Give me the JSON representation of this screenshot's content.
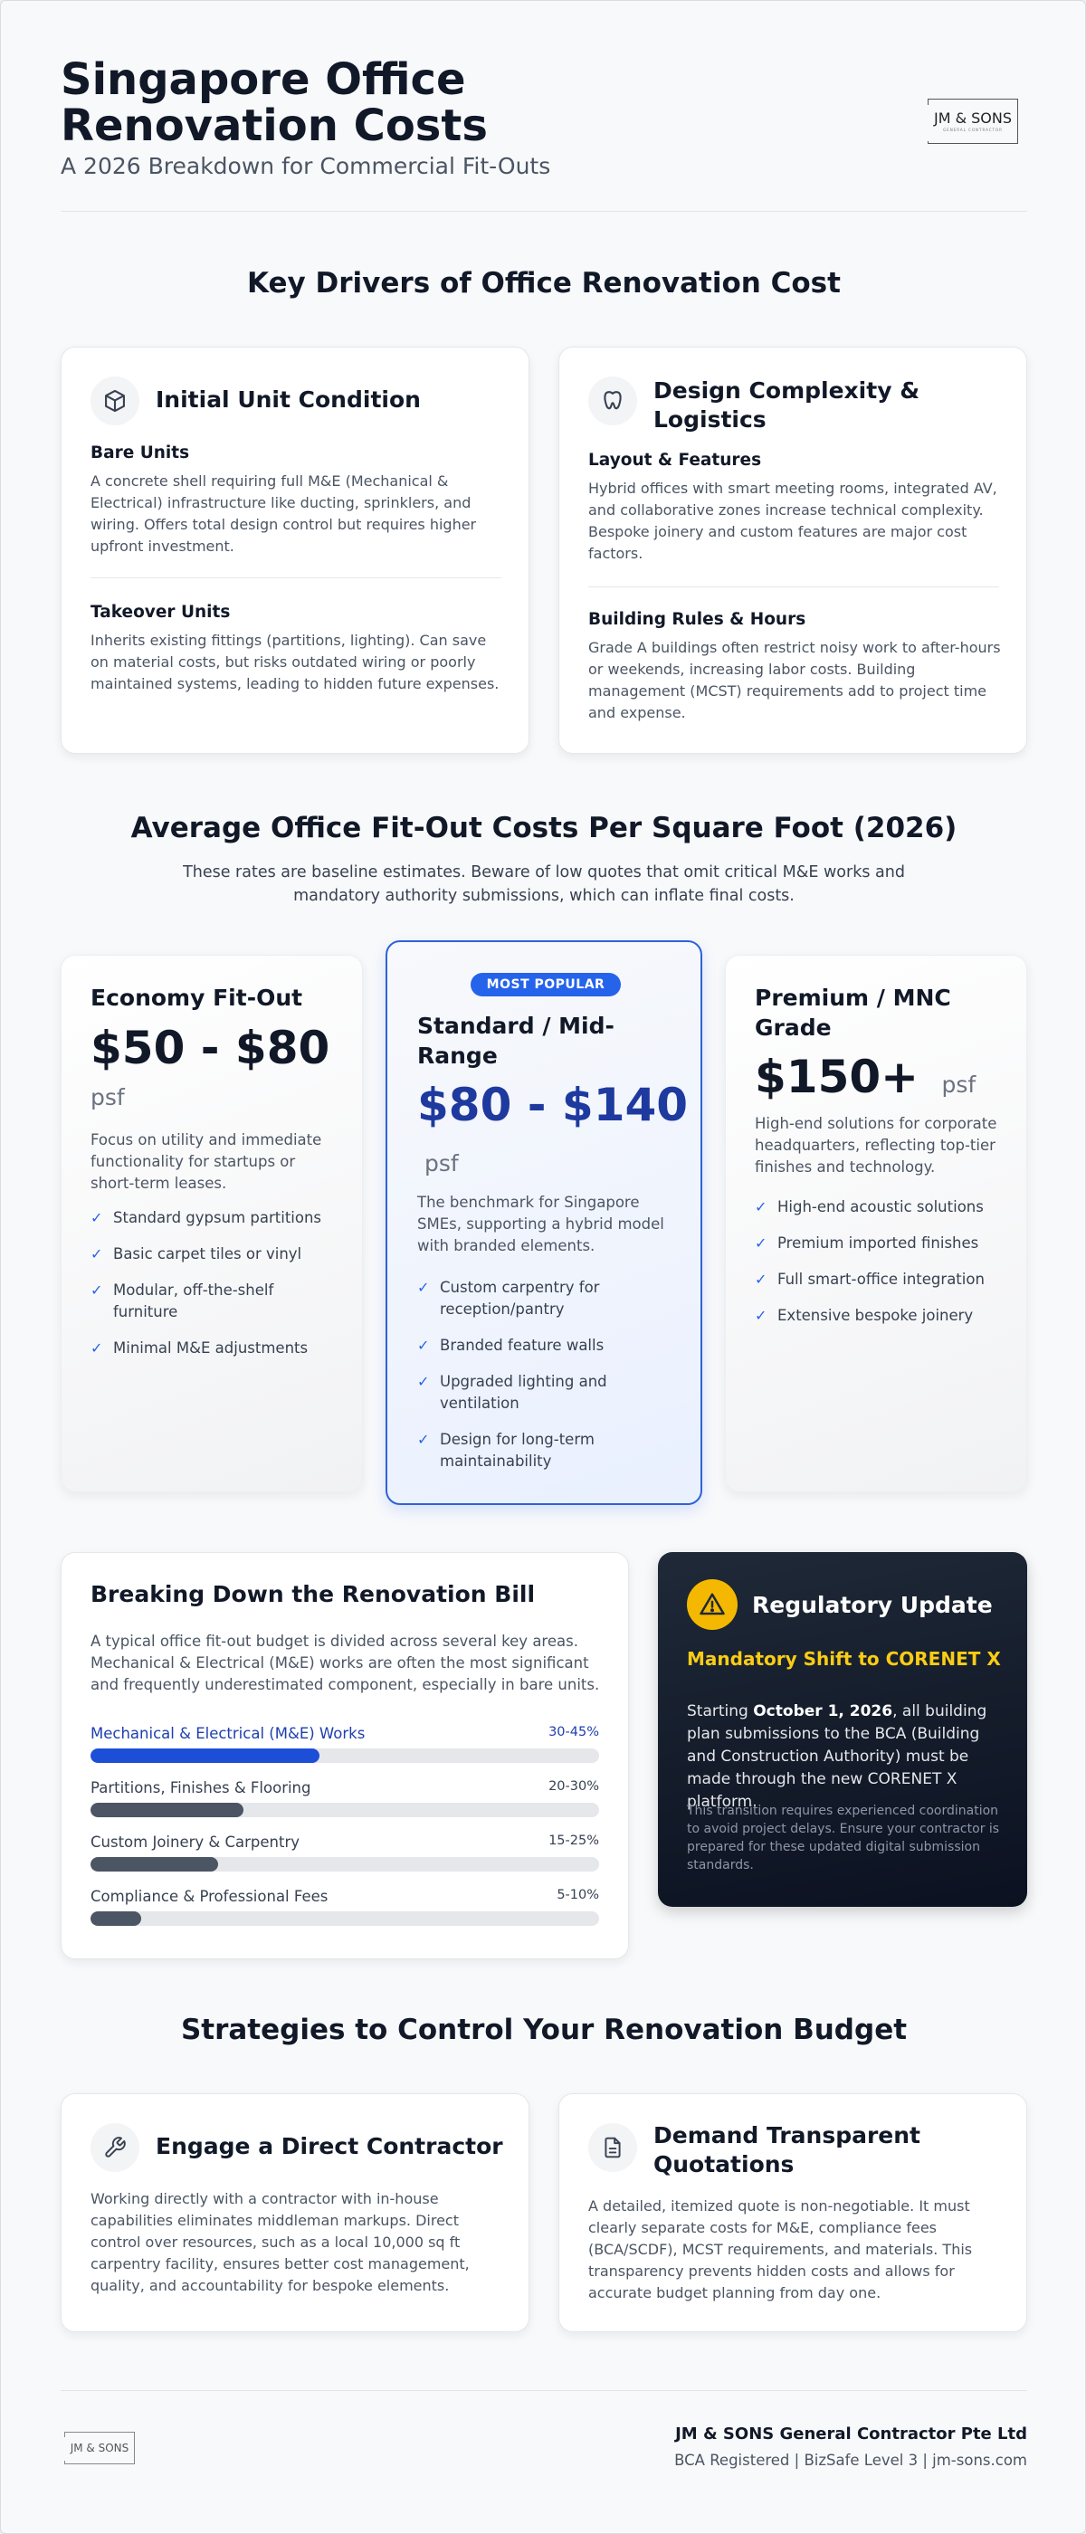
{
  "header": {
    "title": "Singapore Office Renovation Costs",
    "subtitle": "A 2026 Breakdown for Commercial Fit-Outs",
    "logo_text": "JM & SONS",
    "logo_subtext": "GENERAL CONTRACTOR"
  },
  "drivers": {
    "heading": "Key Drivers of Office Renovation Cost",
    "cards": [
      {
        "icon": "cube-icon",
        "title": "Initial Unit Condition",
        "sections": [
          {
            "title": "Bare Units",
            "text": "A concrete shell requiring full M&E (Mechanical & Electrical) infrastructure like ducting, sprinklers, and wiring. Offers total design control but requires higher upfront investment."
          },
          {
            "title": "Takeover Units",
            "text": "Inherits existing fittings (partitions, lighting). Can save on material costs, but risks outdated wiring or poorly maintained systems, leading to hidden future expenses."
          }
        ]
      },
      {
        "icon": "layout-icon",
        "title": "Design Complexity & Logistics",
        "sections": [
          {
            "title": "Layout & Features",
            "text": "Hybrid offices with smart meeting rooms, integrated AV, and collaborative zones increase technical complexity. Bespoke joinery and custom features are major cost factors."
          },
          {
            "title": "Building Rules & Hours",
            "text": "Grade A buildings often restrict noisy work to after-hours or weekends, increasing labor costs. Building management (MCST) requirements add to project time and expense."
          }
        ]
      }
    ]
  },
  "pricing": {
    "heading": "Average Office Fit-Out Costs Per Square Foot (2026)",
    "note": "These rates are baseline estimates. Beware of low quotes that omit critical M&E works and mandatory authority submissions, which can inflate final costs.",
    "tiers": [
      {
        "name": "Economy Fit-Out",
        "price": "$50 - $80",
        "unit": "psf",
        "description": "Focus on utility and immediate functionality for startups or short-term leases.",
        "features": [
          "Standard gypsum partitions",
          "Basic carpet tiles or vinyl",
          "Modular, off-the-shelf furniture",
          "Minimal M&E adjustments"
        ]
      },
      {
        "badge": "MOST POPULAR",
        "name": "Standard / Mid-Range",
        "price": "$80 - $140",
        "unit": "psf",
        "description": "The benchmark for Singapore SMEs, supporting a hybrid model with branded elements.",
        "features": [
          "Custom carpentry for reception/pantry",
          "Branded feature walls",
          "Upgraded lighting and ventilation",
          "Design for long-term maintainability"
        ]
      },
      {
        "name": "Premium / MNC Grade",
        "price": "$150+",
        "unit": "psf",
        "description": "High-end solutions for corporate headquarters, reflecting top-tier finishes and technology.",
        "features": [
          "High-end acoustic solutions",
          "Premium imported finishes",
          "Full smart-office integration",
          "Extensive bespoke joinery"
        ]
      }
    ],
    "check_glyph": "✓"
  },
  "breakdown": {
    "title": "Breaking Down the Renovation Bill",
    "text": "A typical office fit-out budget is divided across several key areas. Mechanical & Electrical (M&E) works are often the most significant and frequently underestimated component, especially in bare units.",
    "items": [
      {
        "label": "Mechanical & Electrical (M&E) Works",
        "range": "30-45%",
        "fill_pct": 45,
        "color": "#1d4ed8"
      },
      {
        "label": "Partitions, Finishes & Flooring",
        "range": "20-30%",
        "fill_pct": 30,
        "color": "#4b5563"
      },
      {
        "label": "Custom Joinery & Carpentry",
        "range": "15-25%",
        "fill_pct": 25,
        "color": "#4b5563"
      },
      {
        "label": "Compliance & Professional Fees",
        "range": "5-10%",
        "fill_pct": 10,
        "color": "#4b5563"
      }
    ]
  },
  "regulatory": {
    "icon": "warning-icon",
    "title": "Regulatory Update",
    "subtitle": "Mandatory Shift to CORENET X",
    "text_pre": "Starting ",
    "text_date": "October 1, 2026",
    "text_post": ", all building plan submissions to the BCA (Building and Construction Authority) must be made through the new CORENET X platform.",
    "note": "This transition requires experienced coordination to avoid project delays. Ensure your contractor is prepared for these updated digital submission standards.",
    "accent": "#facc15"
  },
  "strategies": {
    "heading": "Strategies to Control Your Renovation Budget",
    "cards": [
      {
        "icon": "wrench-icon",
        "title": "Engage a Direct Contractor",
        "text": "Working directly with a contractor with in-house capabilities eliminates middleman markups. Direct control over resources, such as a local 10,000 sq ft carpentry facility, ensures better cost management, quality, and accountability for bespoke elements."
      },
      {
        "icon": "document-icon",
        "title": "Demand Transparent Quotations",
        "text": "A detailed, itemized quote is non-negotiable. It must clearly separate costs for M&E, compliance fees (BCA/SCDF), MCST requirements, and materials. This transparency prevents hidden costs and allows for accurate budget planning from day one."
      }
    ]
  },
  "footer": {
    "logo_text": "JM & SONS",
    "company": "JM & SONS General Contractor Pte Ltd",
    "meta": "BCA Registered | BizSafe Level 3 | jm-sons.com"
  }
}
